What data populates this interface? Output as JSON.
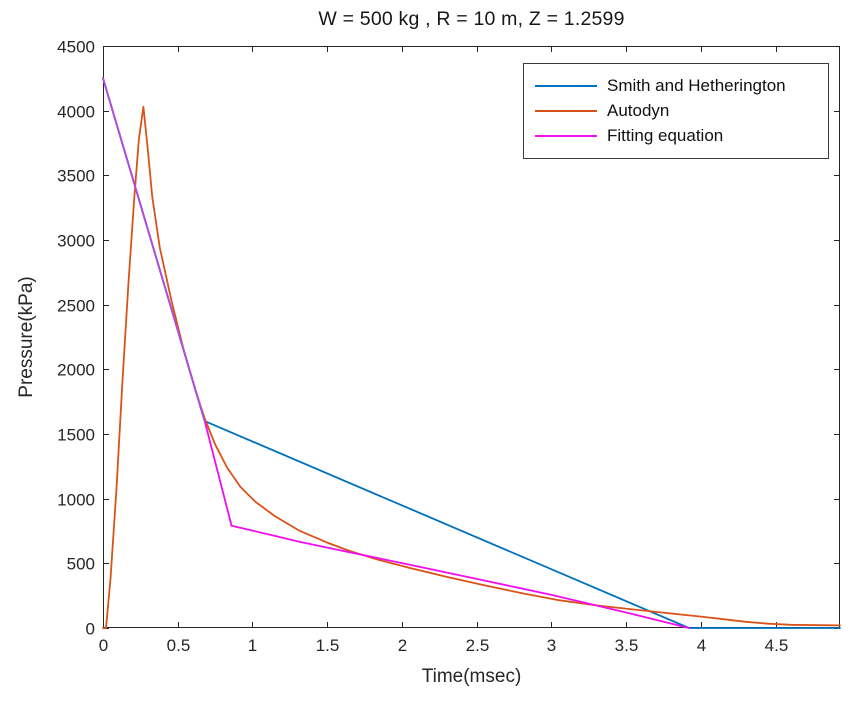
{
  "title": "W = 500 kg , R = 10 m, Z = 1.2599",
  "chart_data": {
    "type": "line",
    "title": "W = 500 kg , R = 10 m, Z = 1.2599",
    "xlabel": "Time(msec)",
    "ylabel": "Pressure(kPa)",
    "xlim": [
      0,
      4.93
    ],
    "ylim": [
      0,
      4500
    ],
    "xticks": [
      0,
      0.5,
      1,
      1.5,
      2,
      2.5,
      3,
      3.5,
      4,
      4.5
    ],
    "yticks": [
      0,
      500,
      1000,
      1500,
      2000,
      2500,
      3000,
      3500,
      4000,
      4500
    ],
    "grid": false,
    "box": true,
    "axis_color": "#262626",
    "tick_label_size": 17,
    "legend_position": "top-right",
    "series": [
      {
        "name": "Smith and Hetherington",
        "color": "#0072BD",
        "points": [
          [
            0,
            4250
          ],
          [
            0.68,
            1600
          ],
          [
            3.92,
            0
          ],
          [
            4.93,
            0
          ]
        ]
      },
      {
        "name": "Autodyn",
        "color": "#D95319",
        "points": [
          [
            0,
            0
          ],
          [
            0.02,
            0
          ],
          [
            0.05,
            380
          ],
          [
            0.09,
            1080
          ],
          [
            0.13,
            1900
          ],
          [
            0.17,
            2660
          ],
          [
            0.21,
            3340
          ],
          [
            0.24,
            3780
          ],
          [
            0.27,
            4030
          ],
          [
            0.3,
            3700
          ],
          [
            0.33,
            3330
          ],
          [
            0.38,
            2940
          ],
          [
            0.46,
            2520
          ],
          [
            0.54,
            2150
          ],
          [
            0.62,
            1830
          ],
          [
            0.68,
            1620
          ],
          [
            0.75,
            1420
          ],
          [
            0.83,
            1240
          ],
          [
            0.92,
            1090
          ],
          [
            1.02,
            975
          ],
          [
            1.15,
            865
          ],
          [
            1.31,
            755
          ],
          [
            1.5,
            660
          ],
          [
            1.65,
            595
          ],
          [
            1.85,
            525
          ],
          [
            2.05,
            465
          ],
          [
            2.3,
            395
          ],
          [
            2.55,
            330
          ],
          [
            2.8,
            270
          ],
          [
            3.05,
            215
          ],
          [
            3.3,
            175
          ],
          [
            3.55,
            143
          ],
          [
            3.8,
            112
          ],
          [
            4.0,
            88
          ],
          [
            4.15,
            68
          ],
          [
            4.3,
            48
          ],
          [
            4.45,
            33
          ],
          [
            4.6,
            25
          ],
          [
            4.93,
            20
          ]
        ]
      },
      {
        "name": "Fitting equation",
        "color": "#F20DEF",
        "points": [
          [
            0,
            4250
          ],
          [
            0.68,
            1600
          ],
          [
            0.86,
            790
          ],
          [
            1.1,
            726
          ],
          [
            1.31,
            668
          ],
          [
            1.6,
            598
          ],
          [
            2.0,
            502
          ],
          [
            2.5,
            380
          ],
          [
            3.0,
            256
          ],
          [
            3.5,
            120
          ],
          [
            3.92,
            0
          ]
        ]
      }
    ],
    "overlap_segment": {
      "description": "Fitting equation coincides with Smith and Hetherington line (renders purple)",
      "color": "#AC52D6",
      "points": [
        [
          0,
          4250
        ],
        [
          0.68,
          1600
        ]
      ]
    }
  }
}
